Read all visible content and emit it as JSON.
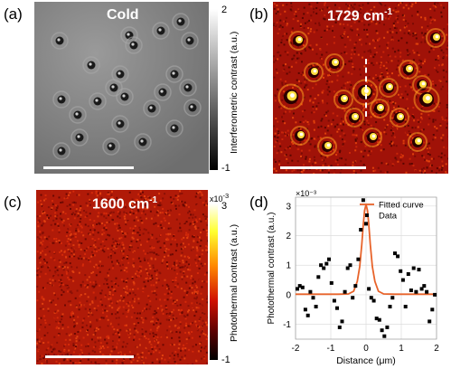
{
  "panels": {
    "a": {
      "label": "(a)",
      "title": "Cold",
      "colorbar": {
        "title": "Interferometric contrast (a.u.)",
        "max": "2",
        "min": "-1"
      }
    },
    "b": {
      "label": "(b)",
      "title": "1729 cm",
      "title_sup": "-1"
    },
    "c": {
      "label": "(c)",
      "title": "1600 cm",
      "title_sup": "-1",
      "colorbar": {
        "title": "Photothermal contrast (a.u.)",
        "exponent": "x10",
        "exponent_sup": "-3",
        "max": "3",
        "min": "-1"
      }
    },
    "d": {
      "label": "(d)"
    }
  },
  "colors": {
    "hot_dark": "#3a0000",
    "hot_mid": "#c8200a",
    "hot_bright": "#ffff40",
    "fit_line": "#e8632a",
    "markers": "#000000"
  },
  "chart_data": {
    "type": "scatter",
    "xlabel": "Distance (μm)",
    "ylabel": "Photothermal contrast (a.u.)",
    "y_multiplier": "×10⁻³",
    "xlim": [
      -2,
      2
    ],
    "ylim": [
      -1.5,
      3.3
    ],
    "xticks": [
      "-2",
      "-1",
      "0",
      "1",
      "2"
    ],
    "yticks": [
      "-1",
      "0",
      "1",
      "2",
      "3"
    ],
    "grid": true,
    "legend": {
      "position": "top-right",
      "entries": [
        "Fitted curve",
        "Data"
      ]
    },
    "series": [
      {
        "name": "Fitted curve",
        "kind": "line",
        "x": [
          -2.0,
          -1.6,
          -1.2,
          -0.8,
          -0.5,
          -0.35,
          -0.25,
          -0.18,
          -0.12,
          -0.08,
          -0.04,
          0.0,
          0.04,
          0.08,
          0.12,
          0.18,
          0.25,
          0.35,
          0.5,
          0.8,
          1.2,
          1.6,
          2.0
        ],
        "y": [
          0.02,
          0.02,
          0.02,
          0.02,
          0.03,
          0.12,
          0.45,
          0.95,
          1.7,
          2.35,
          2.85,
          3.05,
          2.85,
          2.35,
          1.7,
          0.95,
          0.45,
          0.12,
          0.03,
          0.02,
          0.02,
          0.02,
          0.02
        ]
      },
      {
        "name": "Data",
        "kind": "points",
        "x": [
          -1.95,
          -1.88,
          -1.8,
          -1.72,
          -1.65,
          -1.58,
          -1.5,
          -1.42,
          -1.35,
          -1.28,
          -1.2,
          -1.12,
          -1.05,
          -0.98,
          -0.9,
          -0.82,
          -0.75,
          -0.68,
          -0.6,
          -0.52,
          -0.45,
          -0.38,
          -0.3,
          -0.22,
          -0.15,
          -0.08,
          0.0,
          0.08,
          0.15,
          0.22,
          0.3,
          0.38,
          0.45,
          0.52,
          0.6,
          0.68,
          0.75,
          0.82,
          0.9,
          0.98,
          1.05,
          1.12,
          1.2,
          1.28,
          1.35,
          1.42,
          1.5,
          1.58,
          1.65,
          1.72,
          1.8,
          1.88,
          1.95
        ],
        "y": [
          0.2,
          0.3,
          0.25,
          -0.5,
          -0.7,
          0.1,
          -0.1,
          -0.4,
          0.6,
          1.0,
          0.9,
          1.05,
          1.2,
          0.4,
          -0.2,
          -0.45,
          -1.1,
          -0.9,
          0.1,
          0.9,
          1.0,
          -0.1,
          0.3,
          1.2,
          2.2,
          3.2,
          2.4,
          0.2,
          -0.1,
          -0.2,
          -0.8,
          -0.85,
          -1.2,
          -1.4,
          -1.1,
          -0.4,
          -0.1,
          1.4,
          1.3,
          0.8,
          0.5,
          -0.4,
          0.7,
          0.15,
          0.9,
          0.1,
          0.85,
          0.2,
          0.3,
          0.1,
          -0.9,
          -0.5,
          0.0
        ]
      }
    ]
  }
}
